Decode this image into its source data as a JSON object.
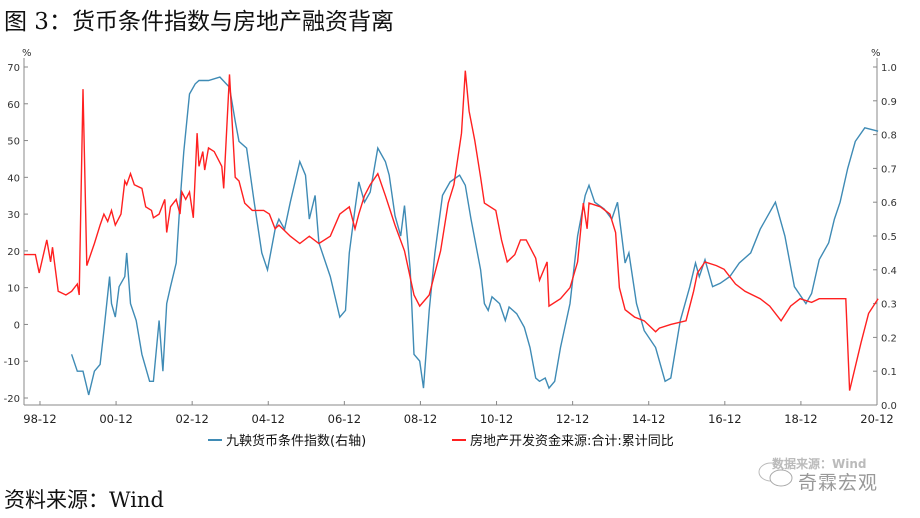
{
  "title": "图 3：货币条件指数与房地产融资背离",
  "source": "资料来源：Wind",
  "watermark": {
    "line1": "数据来源：Wind",
    "line2": "奇霖宏观"
  },
  "chart_data": {
    "type": "line",
    "title": "图 3：货币条件指数与房地产融资背离",
    "left_axis": {
      "unit": "%",
      "ylim": [
        -20,
        70
      ],
      "ticks": [
        -20,
        -10,
        0,
        10,
        20,
        30,
        40,
        50,
        60,
        70
      ]
    },
    "right_axis": {
      "unit": "%",
      "ylim": [
        0,
        1.0
      ],
      "ticks": [
        "0.0",
        "0.1",
        "0.2",
        "0.3",
        "0.4",
        "0.5",
        "0.6",
        "0.7",
        "0.8",
        "0.9",
        "1.0"
      ]
    },
    "xlim": [
      1998.5,
      2020.92
    ],
    "x_ticks": [
      {
        "label": "98-12",
        "x": 1998.92
      },
      {
        "label": "00-12",
        "x": 2000.92
      },
      {
        "label": "02-12",
        "x": 2002.92
      },
      {
        "label": "04-12",
        "x": 2004.92
      },
      {
        "label": "06-12",
        "x": 2006.92
      },
      {
        "label": "08-12",
        "x": 2008.92
      },
      {
        "label": "10-12",
        "x": 2010.92
      },
      {
        "label": "12-12",
        "x": 2012.92
      },
      {
        "label": "14-12",
        "x": 2014.92
      },
      {
        "label": "16-12",
        "x": 2016.92
      },
      {
        "label": "18-12",
        "x": 2018.92
      },
      {
        "label": "20-12",
        "x": 2020.92
      }
    ],
    "legend": "bottom",
    "series": [
      {
        "name": "九鞅货币条件指数(右轴)",
        "axis": "right",
        "color": "#3f8bb5",
        "points": [
          [
            1999.75,
            0.15
          ],
          [
            1999.9,
            0.1
          ],
          [
            2000.05,
            0.1
          ],
          [
            2000.2,
            0.03
          ],
          [
            2000.35,
            0.1
          ],
          [
            2000.5,
            0.12
          ],
          [
            2000.6,
            0.22
          ],
          [
            2000.75,
            0.38
          ],
          [
            2000.8,
            0.3
          ],
          [
            2000.9,
            0.26
          ],
          [
            2001.0,
            0.35
          ],
          [
            2001.15,
            0.38
          ],
          [
            2001.2,
            0.45
          ],
          [
            2001.3,
            0.3
          ],
          [
            2001.45,
            0.25
          ],
          [
            2001.6,
            0.15
          ],
          [
            2001.8,
            0.07
          ],
          [
            2001.9,
            0.07
          ],
          [
            2002.05,
            0.25
          ],
          [
            2002.15,
            0.1
          ],
          [
            2002.25,
            0.3
          ],
          [
            2002.35,
            0.35
          ],
          [
            2002.5,
            0.42
          ],
          [
            2002.6,
            0.6
          ],
          [
            2002.7,
            0.75
          ],
          [
            2002.85,
            0.92
          ],
          [
            2003.0,
            0.95
          ],
          [
            2003.1,
            0.96
          ],
          [
            2003.35,
            0.96
          ],
          [
            2003.65,
            0.97
          ],
          [
            2003.9,
            0.94
          ],
          [
            2004.05,
            0.84
          ],
          [
            2004.15,
            0.78
          ],
          [
            2004.35,
            0.76
          ],
          [
            2004.55,
            0.6
          ],
          [
            2004.75,
            0.45
          ],
          [
            2004.9,
            0.4
          ],
          [
            2005.1,
            0.52
          ],
          [
            2005.2,
            0.55
          ],
          [
            2005.35,
            0.52
          ],
          [
            2005.5,
            0.6
          ],
          [
            2005.75,
            0.72
          ],
          [
            2005.9,
            0.68
          ],
          [
            2006.0,
            0.55
          ],
          [
            2006.15,
            0.62
          ],
          [
            2006.25,
            0.48
          ],
          [
            2006.55,
            0.38
          ],
          [
            2006.8,
            0.26
          ],
          [
            2006.95,
            0.28
          ],
          [
            2007.05,
            0.45
          ],
          [
            2007.2,
            0.58
          ],
          [
            2007.3,
            0.66
          ],
          [
            2007.45,
            0.6
          ],
          [
            2007.6,
            0.63
          ],
          [
            2007.8,
            0.76
          ],
          [
            2008.0,
            0.72
          ],
          [
            2008.1,
            0.68
          ],
          [
            2008.25,
            0.56
          ],
          [
            2008.4,
            0.5
          ],
          [
            2008.5,
            0.59
          ],
          [
            2008.65,
            0.4
          ],
          [
            2008.75,
            0.15
          ],
          [
            2008.9,
            0.13
          ],
          [
            2009.0,
            0.05
          ],
          [
            2009.15,
            0.28
          ],
          [
            2009.3,
            0.45
          ],
          [
            2009.5,
            0.62
          ],
          [
            2009.7,
            0.66
          ],
          [
            2009.95,
            0.68
          ],
          [
            2010.1,
            0.65
          ],
          [
            2010.25,
            0.55
          ],
          [
            2010.5,
            0.4
          ],
          [
            2010.6,
            0.3
          ],
          [
            2010.7,
            0.28
          ],
          [
            2010.8,
            0.32
          ],
          [
            2011.0,
            0.3
          ],
          [
            2011.15,
            0.25
          ],
          [
            2011.25,
            0.29
          ],
          [
            2011.45,
            0.27
          ],
          [
            2011.65,
            0.23
          ],
          [
            2011.8,
            0.17
          ],
          [
            2011.95,
            0.08
          ],
          [
            2012.05,
            0.07
          ],
          [
            2012.2,
            0.08
          ],
          [
            2012.3,
            0.05
          ],
          [
            2012.45,
            0.07
          ],
          [
            2012.6,
            0.17
          ],
          [
            2012.85,
            0.3
          ],
          [
            2013.05,
            0.5
          ],
          [
            2013.25,
            0.62
          ],
          [
            2013.35,
            0.65
          ],
          [
            2013.5,
            0.6
          ],
          [
            2013.75,
            0.58
          ],
          [
            2013.95,
            0.55
          ],
          [
            2014.1,
            0.6
          ],
          [
            2014.3,
            0.42
          ],
          [
            2014.4,
            0.45
          ],
          [
            2014.6,
            0.3
          ],
          [
            2014.8,
            0.22
          ],
          [
            2015.1,
            0.17
          ],
          [
            2015.35,
            0.07
          ],
          [
            2015.5,
            0.08
          ],
          [
            2015.75,
            0.25
          ],
          [
            2016.0,
            0.35
          ],
          [
            2016.15,
            0.42
          ],
          [
            2016.25,
            0.38
          ],
          [
            2016.4,
            0.43
          ],
          [
            2016.6,
            0.35
          ],
          [
            2016.8,
            0.36
          ],
          [
            2017.05,
            0.38
          ],
          [
            2017.3,
            0.42
          ],
          [
            2017.6,
            0.45
          ],
          [
            2017.85,
            0.52
          ],
          [
            2018.1,
            0.57
          ],
          [
            2018.25,
            0.6
          ],
          [
            2018.5,
            0.5
          ],
          [
            2018.75,
            0.35
          ],
          [
            2019.05,
            0.3
          ],
          [
            2019.2,
            0.33
          ],
          [
            2019.4,
            0.43
          ],
          [
            2019.65,
            0.48
          ],
          [
            2019.8,
            0.55
          ],
          [
            2019.95,
            0.6
          ],
          [
            2020.15,
            0.7
          ],
          [
            2020.35,
            0.78
          ],
          [
            2020.6,
            0.82
          ],
          [
            2020.95,
            0.81
          ]
        ]
      },
      {
        "name": "房地产开发资金来源:合计:累计同比",
        "axis": "left",
        "color": "#ff2020",
        "points": [
          [
            1998.5,
            19
          ],
          [
            1998.8,
            19
          ],
          [
            1998.9,
            14
          ],
          [
            1999.1,
            23
          ],
          [
            1999.2,
            17
          ],
          [
            1999.25,
            21
          ],
          [
            1999.4,
            9
          ],
          [
            1999.6,
            8
          ],
          [
            1999.75,
            9
          ],
          [
            1999.9,
            11
          ],
          [
            1999.95,
            8
          ],
          [
            2000.05,
            64
          ],
          [
            2000.15,
            16
          ],
          [
            2000.35,
            22
          ],
          [
            2000.5,
            27
          ],
          [
            2000.6,
            30
          ],
          [
            2000.7,
            28
          ],
          [
            2000.8,
            31
          ],
          [
            2000.9,
            27
          ],
          [
            2001.05,
            30
          ],
          [
            2001.15,
            39
          ],
          [
            2001.2,
            38
          ],
          [
            2001.3,
            41
          ],
          [
            2001.4,
            38
          ],
          [
            2001.6,
            37
          ],
          [
            2001.7,
            32
          ],
          [
            2001.85,
            31
          ],
          [
            2001.9,
            29
          ],
          [
            2002.05,
            30
          ],
          [
            2002.2,
            34
          ],
          [
            2002.25,
            25
          ],
          [
            2002.35,
            32
          ],
          [
            2002.5,
            34
          ],
          [
            2002.6,
            30
          ],
          [
            2002.65,
            36
          ],
          [
            2002.75,
            34
          ],
          [
            2002.85,
            36
          ],
          [
            2002.95,
            29
          ],
          [
            2003.05,
            52
          ],
          [
            2003.1,
            43
          ],
          [
            2003.2,
            47
          ],
          [
            2003.25,
            42
          ],
          [
            2003.35,
            48
          ],
          [
            2003.5,
            47
          ],
          [
            2003.7,
            43
          ],
          [
            2003.75,
            37
          ],
          [
            2003.9,
            68
          ],
          [
            2004.05,
            40
          ],
          [
            2004.15,
            39
          ],
          [
            2004.3,
            33
          ],
          [
            2004.5,
            31
          ],
          [
            2004.8,
            31
          ],
          [
            2004.95,
            30
          ],
          [
            2005.1,
            26
          ],
          [
            2005.2,
            27
          ],
          [
            2005.5,
            24
          ],
          [
            2005.75,
            22
          ],
          [
            2006.0,
            24
          ],
          [
            2006.25,
            22
          ],
          [
            2006.55,
            24
          ],
          [
            2006.8,
            30
          ],
          [
            2007.05,
            32
          ],
          [
            2007.2,
            26
          ],
          [
            2007.3,
            30
          ],
          [
            2007.45,
            35
          ],
          [
            2007.6,
            38
          ],
          [
            2007.8,
            41
          ],
          [
            2008.0,
            35
          ],
          [
            2008.25,
            27
          ],
          [
            2008.5,
            20
          ],
          [
            2008.75,
            8
          ],
          [
            2008.9,
            5
          ],
          [
            2009.15,
            8
          ],
          [
            2009.45,
            20
          ],
          [
            2009.65,
            33
          ],
          [
            2009.8,
            38
          ],
          [
            2010.0,
            52
          ],
          [
            2010.1,
            69
          ],
          [
            2010.2,
            58
          ],
          [
            2010.35,
            50
          ],
          [
            2010.5,
            40
          ],
          [
            2010.6,
            33
          ],
          [
            2010.9,
            31
          ],
          [
            2011.05,
            23
          ],
          [
            2011.2,
            17
          ],
          [
            2011.4,
            19
          ],
          [
            2011.55,
            23
          ],
          [
            2011.7,
            23
          ],
          [
            2011.95,
            18
          ],
          [
            2012.05,
            12
          ],
          [
            2012.25,
            17
          ],
          [
            2012.3,
            5
          ],
          [
            2012.6,
            7
          ],
          [
            2012.85,
            10
          ],
          [
            2013.05,
            17
          ],
          [
            2013.2,
            33
          ],
          [
            2013.3,
            26
          ],
          [
            2013.35,
            33
          ],
          [
            2013.65,
            32
          ],
          [
            2013.9,
            30
          ],
          [
            2014.05,
            25
          ],
          [
            2014.15,
            10
          ],
          [
            2014.3,
            4
          ],
          [
            2014.55,
            2
          ],
          [
            2014.8,
            1
          ],
          [
            2015.1,
            -2
          ],
          [
            2015.2,
            -1
          ],
          [
            2015.5,
            0
          ],
          [
            2015.9,
            1
          ],
          [
            2016.1,
            9
          ],
          [
            2016.2,
            14
          ],
          [
            2016.4,
            17
          ],
          [
            2016.7,
            16
          ],
          [
            2016.9,
            15
          ],
          [
            2017.2,
            11
          ],
          [
            2017.45,
            9
          ],
          [
            2017.85,
            7
          ],
          [
            2018.1,
            5
          ],
          [
            2018.4,
            1
          ],
          [
            2018.65,
            5
          ],
          [
            2018.9,
            7
          ],
          [
            2019.2,
            6
          ],
          [
            2019.4,
            7
          ],
          [
            2019.8,
            7
          ],
          [
            2020.1,
            7
          ],
          [
            2020.2,
            -18
          ],
          [
            2020.5,
            -5
          ],
          [
            2020.7,
            3
          ],
          [
            2020.95,
            7
          ]
        ]
      }
    ]
  }
}
